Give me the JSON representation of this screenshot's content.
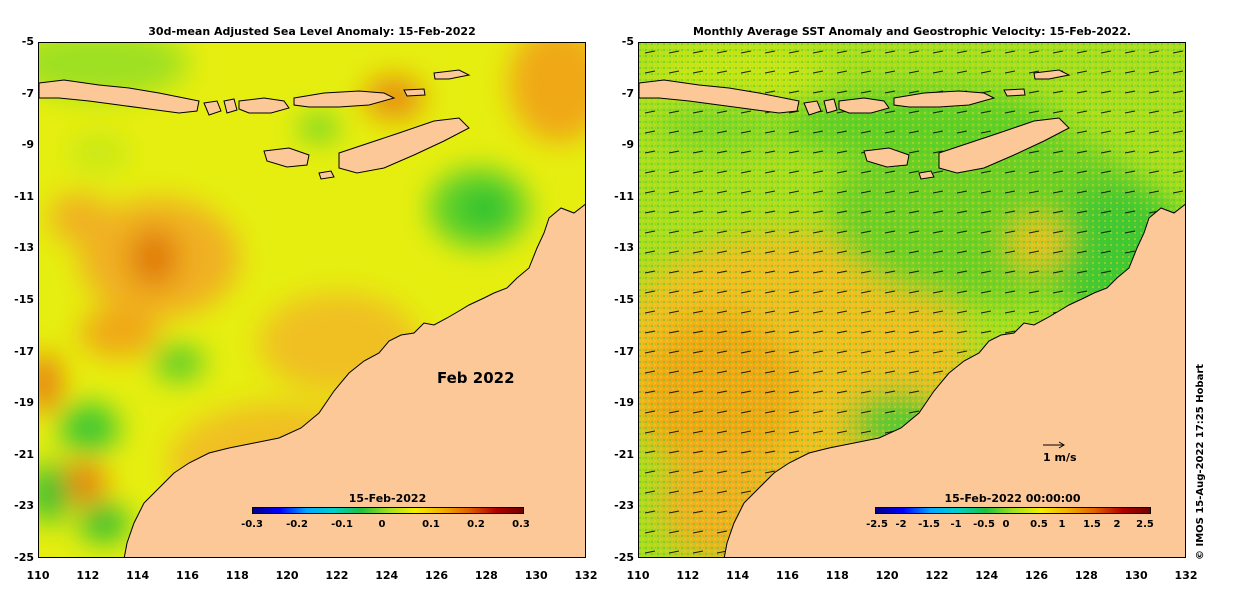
{
  "left_panel": {
    "title": "30d-mean Adjusted Sea Level Anomaly: 15-Feb-2022",
    "month_label": "Feb 2022",
    "colorbar_title": "15-Feb-2022",
    "colorbar_ticks": [
      "-0.3",
      "-0.2",
      "-0.1",
      "0",
      "0.1",
      "0.2",
      "0.3"
    ]
  },
  "right_panel": {
    "title": "Monthly Average SST Anomaly  and Geostrophic Velocity: 15-Feb-2022.",
    "colorbar_title": "15-Feb-2022 00:00:00",
    "colorbar_ticks": [
      "-2.5",
      "-2",
      "-1.5",
      "-1",
      "-0.5",
      "0",
      "0.5",
      "1",
      "1.5",
      "2",
      "2.5"
    ],
    "scale_label": "1 m/s"
  },
  "axes": {
    "lat_ticks": [
      "-5",
      "-7",
      "-9",
      "-11",
      "-13",
      "-15",
      "-17",
      "-19",
      "-21",
      "-23",
      "-25"
    ],
    "lon_ticks": [
      "110",
      "112",
      "114",
      "116",
      "118",
      "120",
      "122",
      "124",
      "126",
      "128",
      "130",
      "132"
    ]
  },
  "credit": "© IMOS 15-Aug-2022 17:25 Hobart",
  "colors": {
    "land": "#fcc898",
    "sla_base": "#e8f000",
    "sla_positive": "#f0a018",
    "sla_negative": "#38c838"
  }
}
